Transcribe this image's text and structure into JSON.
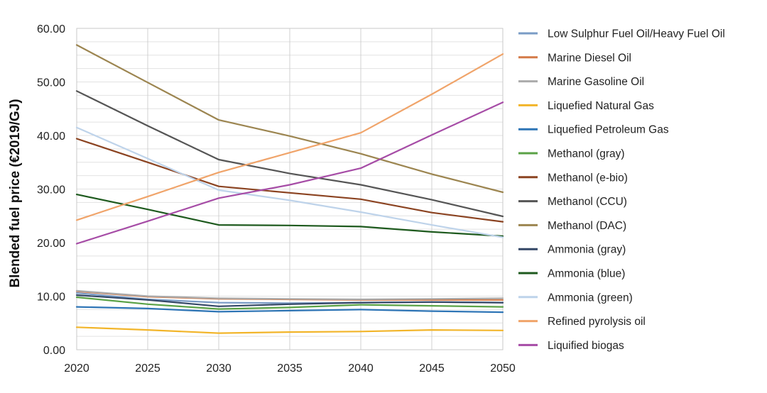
{
  "chart_data": {
    "type": "line",
    "title": "",
    "xlabel": "",
    "ylabel": "Blended fuel price (€2019/GJ)",
    "x": [
      2020,
      2025,
      2030,
      2035,
      2040,
      2045,
      2050
    ],
    "x_tick_labels": [
      "2020",
      "2025",
      "2030",
      "2035",
      "2040",
      "2045",
      "2050"
    ],
    "ylim": [
      0,
      60
    ],
    "y_tick_labels": [
      "0.00",
      "10.00",
      "20.00",
      "30.00",
      "40.00",
      "50.00",
      "60.00"
    ],
    "grid": true,
    "legend_position": "right",
    "series": [
      {
        "name": "Low Sulphur Fuel Oil/Heavy Fuel Oil",
        "color": "#7a9cc6",
        "values": [
          10.6,
          9.4,
          8.8,
          8.7,
          8.8,
          8.9,
          8.8
        ]
      },
      {
        "name": "Marine Diesel Oil",
        "color": "#d47a48",
        "values": [
          10.9,
          9.9,
          9.5,
          9.4,
          9.3,
          9.3,
          9.3
        ]
      },
      {
        "name": "Marine Gasoline Oil",
        "color": "#ababab",
        "values": [
          11.0,
          10.0,
          9.6,
          9.5,
          9.4,
          9.5,
          9.6
        ]
      },
      {
        "name": "Liquefied Natural Gas",
        "color": "#f2b52a",
        "values": [
          4.2,
          3.7,
          3.1,
          3.3,
          3.4,
          3.7,
          3.6
        ]
      },
      {
        "name": "Liquefied Petroleum Gas",
        "color": "#2e75b6",
        "values": [
          8.0,
          7.7,
          7.1,
          7.3,
          7.5,
          7.2,
          7.0
        ]
      },
      {
        "name": "Methanol (gray)",
        "color": "#5aa246",
        "values": [
          9.8,
          8.5,
          7.6,
          7.9,
          8.4,
          8.2,
          8.0
        ]
      },
      {
        "name": "Methanol (e-bio)",
        "color": "#8b4321",
        "values": [
          39.4,
          35.0,
          30.5,
          29.3,
          28.1,
          25.6,
          23.9
        ]
      },
      {
        "name": "Methanol (CCU)",
        "color": "#555555",
        "values": [
          48.3,
          41.8,
          35.5,
          32.9,
          30.8,
          28.0,
          24.9
        ]
      },
      {
        "name": "Methanol (DAC)",
        "color": "#9c8550",
        "values": [
          56.9,
          49.9,
          42.9,
          39.9,
          36.6,
          32.8,
          29.4
        ]
      },
      {
        "name": "Ammonia (gray)",
        "color": "#334766",
        "values": [
          10.2,
          9.3,
          8.1,
          8.5,
          8.8,
          8.9,
          8.8
        ]
      },
      {
        "name": "Ammonia (blue)",
        "color": "#1e5a1e",
        "values": [
          29.0,
          26.2,
          23.3,
          23.2,
          23.0,
          22.0,
          21.2
        ]
      },
      {
        "name": "Ammonia (green)",
        "color": "#bed3ea",
        "values": [
          41.5,
          35.7,
          29.8,
          27.9,
          25.7,
          23.3,
          21.0
        ]
      },
      {
        "name": "Refined pyrolysis oil",
        "color": "#f0a46a",
        "values": [
          24.2,
          28.6,
          33.1,
          36.8,
          40.5,
          47.7,
          55.2
        ]
      },
      {
        "name": "Liquified biogas",
        "color": "#a64ca6",
        "values": [
          19.8,
          24.0,
          28.3,
          30.8,
          33.9,
          40.1,
          46.2
        ]
      }
    ]
  }
}
